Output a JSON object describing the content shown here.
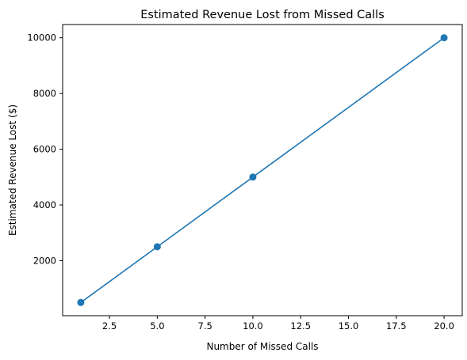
{
  "chart_data": {
    "type": "line",
    "title": "Estimated Revenue Lost from Missed Calls",
    "xlabel": "Number of Missed Calls",
    "ylabel": "Estimated Revenue Lost ($)",
    "series": [
      {
        "x": [
          1,
          5,
          10,
          20
        ],
        "values": [
          500,
          2500,
          5000,
          10000
        ],
        "color": "#1f77b4",
        "marker": "circle"
      }
    ],
    "xlim": [
      0.05,
      20.95
    ],
    "ylim": [
      25,
      10475
    ],
    "xticks": [
      2.5,
      5.0,
      7.5,
      10.0,
      12.5,
      15.0,
      17.5,
      20.0
    ],
    "xtick_labels": [
      "2.5",
      "5.0",
      "7.5",
      "10.0",
      "12.5",
      "15.0",
      "17.5",
      "20.0"
    ],
    "yticks": [
      2000,
      4000,
      6000,
      8000,
      10000
    ],
    "ytick_labels": [
      "2000",
      "4000",
      "6000",
      "8000",
      "10000"
    ],
    "grid": false,
    "legend": "none"
  }
}
